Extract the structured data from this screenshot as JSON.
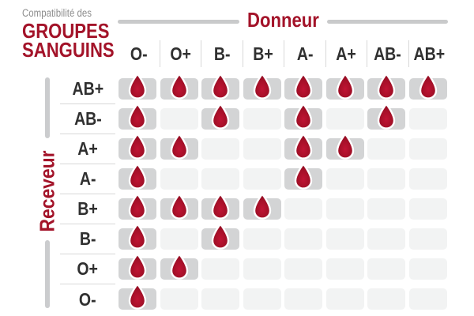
{
  "title": {
    "subtitle": "Compatibilité des",
    "line1": "GROUPES",
    "line2": "SANGUINS"
  },
  "donor_axis_label": "Donneur",
  "receiver_axis_label": "Receveur",
  "icons": {
    "compatible_marker": "blood-drop-icon"
  },
  "colors": {
    "accent_red": "#a31329",
    "drop_red_center": "#c01434",
    "drop_red_edge": "#8f0d22",
    "cell_active_gray": "#d3d4d5",
    "cell_inactive_gray": "#f2f3f3",
    "subtitle_gray": "#8d8d8d",
    "label_dark": "#303030",
    "rule_gray": "#c9cacb",
    "separator_gray": "#d8d8d8"
  },
  "chart_data": {
    "type": "heatmap",
    "title": "Compatibilité des GROUPES SANGUINS",
    "x_axis_title": "Donneur",
    "y_axis_title": "Receveur",
    "donors": [
      "O-",
      "O+",
      "B-",
      "B+",
      "A-",
      "A+",
      "AB-",
      "AB+"
    ],
    "receivers": [
      "AB+",
      "AB-",
      "A+",
      "A-",
      "B+",
      "B-",
      "O+",
      "O-"
    ],
    "cell_marker": "blood drop = compatible, empty gray cell = incompatible",
    "matrix": [
      [
        1,
        1,
        1,
        1,
        1,
        1,
        1,
        1
      ],
      [
        1,
        0,
        1,
        0,
        1,
        0,
        1,
        0
      ],
      [
        1,
        1,
        0,
        0,
        1,
        1,
        0,
        0
      ],
      [
        1,
        0,
        0,
        0,
        1,
        0,
        0,
        0
      ],
      [
        1,
        1,
        1,
        1,
        0,
        0,
        0,
        0
      ],
      [
        1,
        0,
        1,
        0,
        0,
        0,
        0,
        0
      ],
      [
        1,
        1,
        0,
        0,
        0,
        0,
        0,
        0
      ],
      [
        1,
        0,
        0,
        0,
        0,
        0,
        0,
        0
      ]
    ],
    "compatible": {
      "AB+": [
        "O-",
        "O+",
        "B-",
        "B+",
        "A-",
        "A+",
        "AB-",
        "AB+"
      ],
      "AB-": [
        "O-",
        "B-",
        "A-",
        "AB-"
      ],
      "A+": [
        "O-",
        "O+",
        "A-",
        "A+"
      ],
      "A-": [
        "O-",
        "A-"
      ],
      "B+": [
        "O-",
        "O+",
        "B-",
        "B+"
      ],
      "B-": [
        "O-",
        "B-"
      ],
      "O+": [
        "O-",
        "O+"
      ],
      "O-": [
        "O-"
      ]
    }
  }
}
